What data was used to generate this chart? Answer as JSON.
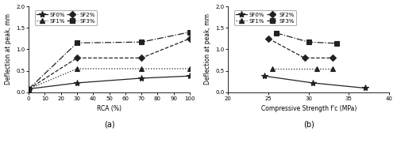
{
  "plot_a": {
    "xlabel": "RCA (%)",
    "ylabel": "Deflection at peak, mm",
    "xlim": [
      0,
      100
    ],
    "ylim": [
      0,
      2
    ],
    "xticks": [
      0,
      10,
      20,
      30,
      40,
      50,
      60,
      70,
      80,
      90,
      100
    ],
    "yticks": [
      0,
      0.5,
      1,
      1.5,
      2
    ],
    "SF0": {
      "x": [
        0,
        30,
        70,
        100
      ],
      "y": [
        0.08,
        0.22,
        0.33,
        0.38
      ]
    },
    "SF1": {
      "x": [
        0,
        30,
        70,
        100
      ],
      "y": [
        0.08,
        0.55,
        0.55,
        0.55
      ]
    },
    "SF2": {
      "x": [
        0,
        30,
        70,
        100
      ],
      "y": [
        0.08,
        0.8,
        0.8,
        1.25
      ]
    },
    "SF3": {
      "x": [
        0,
        30,
        70,
        100
      ],
      "y": [
        0.08,
        1.15,
        1.17,
        1.4
      ]
    },
    "label": "(a)"
  },
  "plot_b": {
    "xlabel": "Compressive Strength f'c (MPa)",
    "ylabel": "Deflection at peak, mm",
    "xlim": [
      20,
      40
    ],
    "ylim": [
      0,
      2
    ],
    "xticks": [
      20,
      25,
      30,
      35,
      40
    ],
    "yticks": [
      0,
      0.5,
      1,
      1.5,
      2
    ],
    "SF0": {
      "x": [
        24.5,
        30.5,
        37.0
      ],
      "y": [
        0.38,
        0.22,
        0.1
      ]
    },
    "SF1": {
      "x": [
        25.5,
        31.0,
        33.0
      ],
      "y": [
        0.55,
        0.55,
        0.55
      ]
    },
    "SF2": {
      "x": [
        25.0,
        29.5,
        33.0
      ],
      "y": [
        1.25,
        0.8,
        0.8
      ]
    },
    "SF3": {
      "x": [
        26.0,
        30.0,
        33.5
      ],
      "y": [
        1.38,
        1.17,
        1.14
      ]
    },
    "label": "(b)"
  },
  "series": {
    "SF0%": {
      "color": "#222222",
      "marker": "*",
      "linestyle": "-",
      "linewidth": 0.9,
      "markersize": 6
    },
    "SF1%": {
      "color": "#222222",
      "marker": "^",
      "linestyle": ":",
      "linewidth": 0.9,
      "markersize": 4
    },
    "SF2%": {
      "color": "#222222",
      "marker": "D",
      "linestyle": "--",
      "linewidth": 0.9,
      "markersize": 4
    },
    "SF3%": {
      "color": "#222222",
      "marker": "s",
      "linestyle": "-.",
      "linewidth": 0.9,
      "markersize": 4
    }
  },
  "legend_order": [
    "SF0%",
    "SF1%",
    "SF2%",
    "SF3%"
  ]
}
